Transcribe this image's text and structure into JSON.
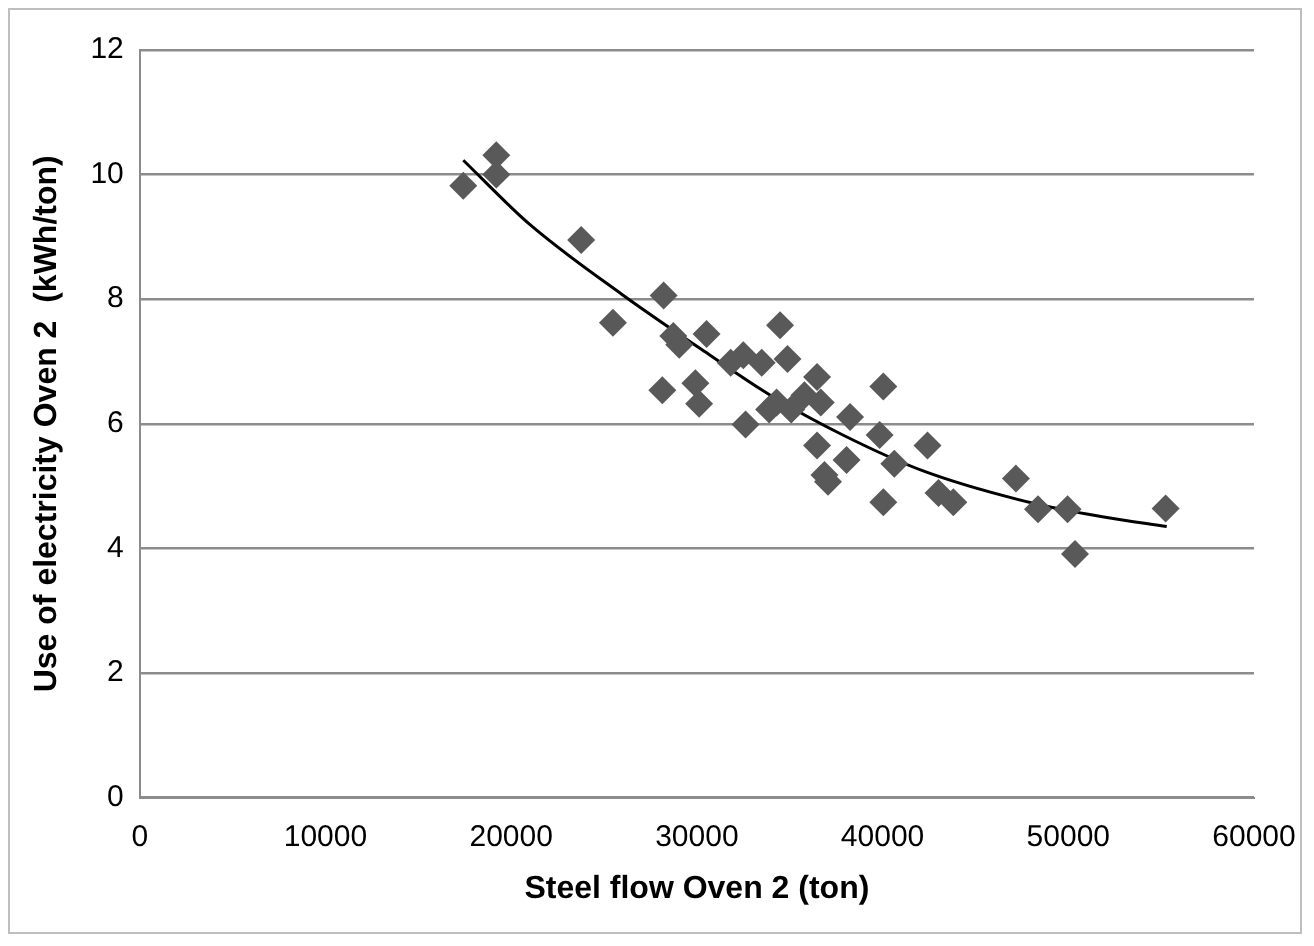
{
  "chart_data": {
    "type": "scatter",
    "xlabel": "Steel flow Oven 2 (ton)",
    "ylabel": "Use of electricity Oven 2  (kWh/ton)",
    "xlim": [
      0,
      60000
    ],
    "xticks": [
      0,
      10000,
      20000,
      30000,
      40000,
      50000,
      60000
    ],
    "ylim": [
      0,
      12
    ],
    "yticks": [
      0,
      2,
      4,
      6,
      8,
      10,
      12
    ],
    "grid": "y",
    "marker": "diamond",
    "legend": false,
    "series": [
      {
        "color": "#595959",
        "x": [
          17420,
          19200,
          19200,
          23770,
          28210,
          25480,
          28730,
          30520,
          29050,
          34480,
          28140,
          29920,
          30120,
          32500,
          33490,
          31820,
          32620,
          36470,
          35790,
          33890,
          35080,
          36470,
          37060,
          40040,
          34880,
          38250,
          39840,
          42420,
          38060,
          40630,
          40040,
          43010,
          43810,
          47180,
          48370,
          49960,
          50360,
          55240,
          36670,
          34290,
          36870
        ],
        "values": [
          9.82,
          10.31,
          10.0,
          8.95,
          8.06,
          7.62,
          7.41,
          7.44,
          7.27,
          7.58,
          6.54,
          6.65,
          6.32,
          7.1,
          6.98,
          6.98,
          5.99,
          6.75,
          6.46,
          6.23,
          6.23,
          5.65,
          5.07,
          6.6,
          7.04,
          6.11,
          5.82,
          5.65,
          5.42,
          5.36,
          4.74,
          4.89,
          4.74,
          5.12,
          4.63,
          4.63,
          3.91,
          4.64,
          6.34,
          6.34,
          5.18
        ]
      },
      {
        "type": "line",
        "color": "#000000",
        "marker": "none",
        "x": [
          17420,
          21000,
          25950,
          30710,
          34000,
          37860,
          42220,
          48180,
          52000,
          55300
        ],
        "values": [
          10.23,
          9.2,
          8.08,
          7.1,
          6.45,
          5.82,
          5.24,
          4.72,
          4.5,
          4.35
        ]
      }
    ]
  }
}
